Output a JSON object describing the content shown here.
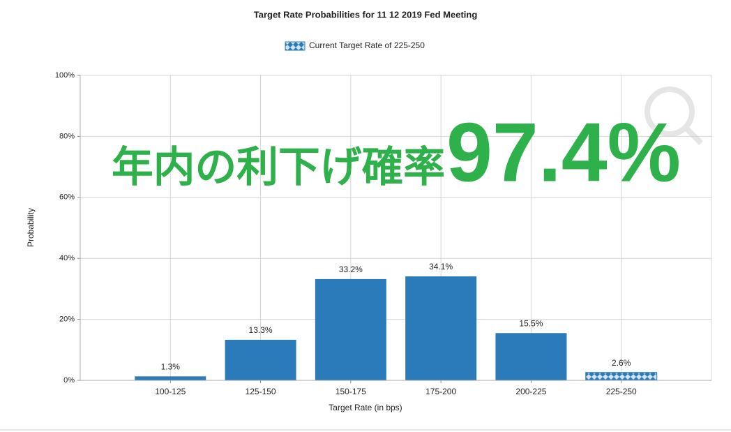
{
  "chart_data": {
    "type": "bar",
    "title": "Target Rate Probabilities for 11 12 2019 Fed Meeting",
    "legend": "Current Target Rate of 225-250",
    "highlight": "225-250",
    "x_label": "Target Rate (in bps)",
    "y_label": "Probability",
    "categories": [
      "100-125",
      "125-150",
      "150-175",
      "175-200",
      "200-225",
      "225-250"
    ],
    "values": [
      1.3,
      13.3,
      33.2,
      34.1,
      15.5,
      2.6
    ],
    "value_labels": [
      "1.3%",
      "13.3%",
      "33.2%",
      "34.1%",
      "15.5%",
      "2.6%"
    ],
    "color": "#2b7bba",
    "ylim": [
      0,
      100
    ],
    "yticks": [
      {
        "value": 0,
        "label": "0%"
      },
      {
        "value": 20,
        "label": "20%"
      },
      {
        "value": 40,
        "label": "40%"
      },
      {
        "value": 60,
        "label": "60%"
      },
      {
        "value": 80,
        "label": "80%"
      },
      {
        "value": 100,
        "label": "100%"
      }
    ],
    "grid": true,
    "annotation": {
      "text": "年内の利下げ確率",
      "value": "97.4%",
      "color": "#2eb04b"
    }
  }
}
